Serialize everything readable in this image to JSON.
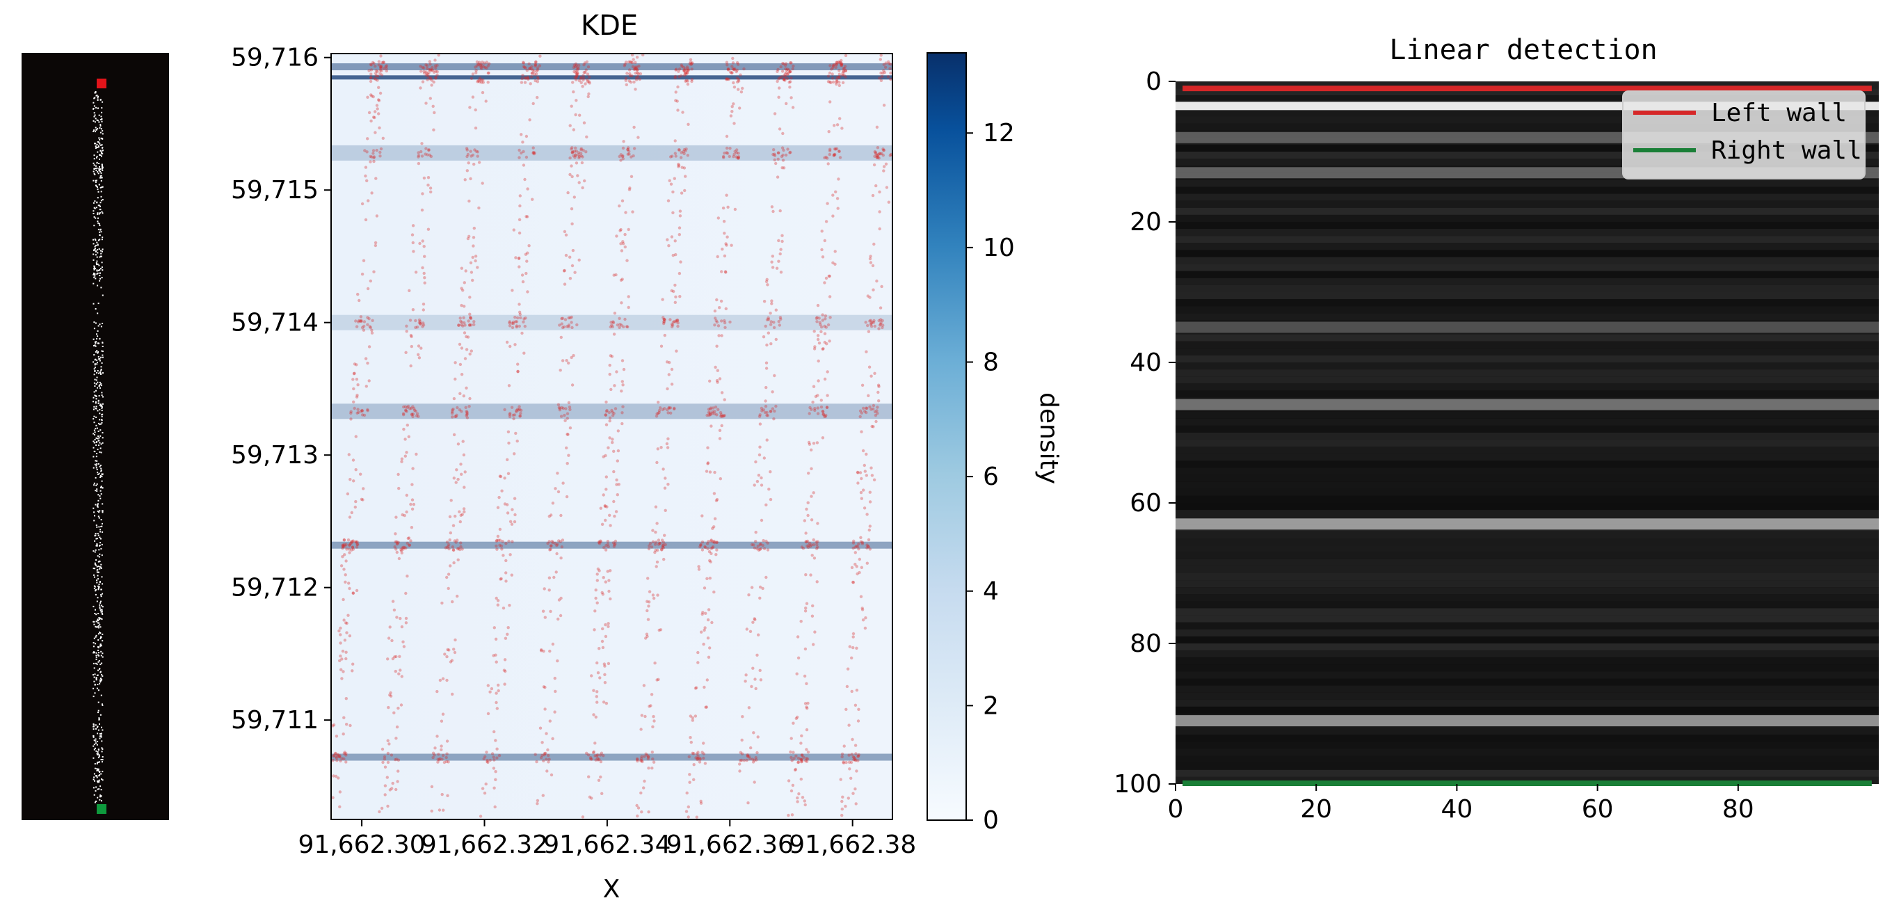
{
  "chart_data": [
    {
      "type": "heatmap",
      "panel": "left-strip",
      "title": "",
      "description_markers": [
        "red",
        "green"
      ],
      "colors": {
        "background": "#0b0706",
        "points": "#ffffff",
        "top_marker": "#e2141a",
        "bottom_marker": "#0e9a3d"
      }
    },
    {
      "type": "scatter",
      "panel": "kde",
      "title": "KDE",
      "xlabel": "X",
      "ylabel": "",
      "xlim": [
        91662.295,
        91662.3865
      ],
      "ylim": [
        59710.25,
        59716.03
      ],
      "xticks": [
        91662.3,
        91662.32,
        91662.34,
        91662.36,
        91662.38
      ],
      "xtick_labels": [
        "91,662.30",
        "91,662.32",
        "91,662.34",
        "91,662.36",
        "91,662.38"
      ],
      "yticks": [
        59711,
        59712,
        59713,
        59714,
        59715,
        59716
      ],
      "ytick_labels": [
        "59,711",
        "59,712",
        "59,713",
        "59,714",
        "59,715",
        "59,716"
      ],
      "density_bands": [
        {
          "y": 59715.93,
          "density": 8
        },
        {
          "y": 59715.85,
          "density": 13
        },
        {
          "y": 59715.28,
          "density": 3
        },
        {
          "y": 59714.0,
          "density": 2
        },
        {
          "y": 59713.33,
          "density": 4
        },
        {
          "y": 59712.32,
          "density": 7
        },
        {
          "y": 59710.72,
          "density": 7
        }
      ],
      "point_color": "#d62728",
      "colorbar": {
        "label": "density",
        "range": [
          0,
          13.4
        ],
        "ticks": [
          0,
          2,
          4,
          6,
          8,
          10,
          12
        ],
        "tick_labels": [
          "0",
          "2",
          "4",
          "6",
          "8",
          "10",
          "12"
        ],
        "color_low": "#f7fbff",
        "color_high": "#08306b"
      }
    },
    {
      "type": "heatmap",
      "panel": "linear-detection",
      "title": "Linear detection",
      "xlim": [
        0,
        100
      ],
      "ylim": [
        100,
        0
      ],
      "xticks": [
        0,
        20,
        40,
        60,
        80
      ],
      "xtick_labels": [
        "0",
        "20",
        "40",
        "60",
        "80"
      ],
      "yticks": [
        0,
        20,
        40,
        60,
        80,
        100
      ],
      "ytick_labels": [
        "0",
        "20",
        "40",
        "60",
        "80",
        "100"
      ],
      "bright_rows": [
        {
          "row": 3.5,
          "intensity": 1.0
        },
        {
          "row": 8,
          "intensity": 0.28
        },
        {
          "row": 13,
          "intensity": 0.3
        },
        {
          "row": 35,
          "intensity": 0.22
        },
        {
          "row": 46,
          "intensity": 0.38
        },
        {
          "row": 63,
          "intensity": 0.6
        },
        {
          "row": 91,
          "intensity": 0.55
        }
      ],
      "series": [
        {
          "name": "Left wall",
          "color": "#d62728",
          "row": 1,
          "x": [
            1,
            99
          ]
        },
        {
          "name": "Right wall",
          "color": "#1a7f37",
          "row": 100,
          "x": [
            1,
            99
          ]
        }
      ],
      "legend": {
        "placement": "top-right",
        "entries": [
          "Left wall",
          "Right wall"
        ]
      }
    }
  ]
}
